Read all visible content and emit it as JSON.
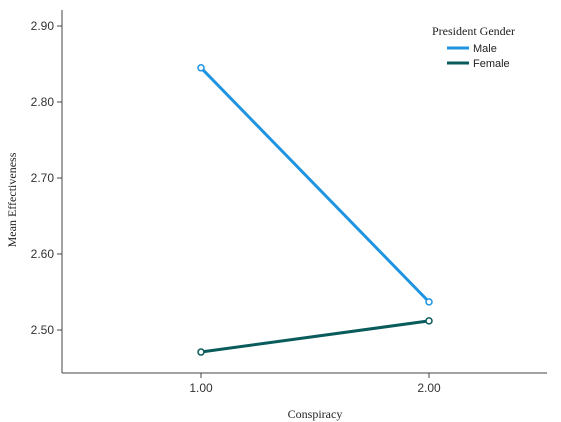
{
  "chart_data": {
    "type": "line",
    "xlabel": "Conspiracy",
    "ylabel": "Mean Effectiveness",
    "categories": [
      "1.00",
      "2.00"
    ],
    "ylim": [
      2.45,
      2.91
    ],
    "yticks": [
      "2.50",
      "2.60",
      "2.70",
      "2.80",
      "2.90"
    ],
    "grid": false,
    "legend": {
      "title": "President Gender",
      "placement": "top-right"
    },
    "series": [
      {
        "name": "Male",
        "color": "#1f94e0",
        "values": [
          2.845,
          2.537
        ]
      },
      {
        "name": "Female",
        "color": "#0a5b5b",
        "values": [
          2.471,
          2.512
        ]
      }
    ]
  }
}
